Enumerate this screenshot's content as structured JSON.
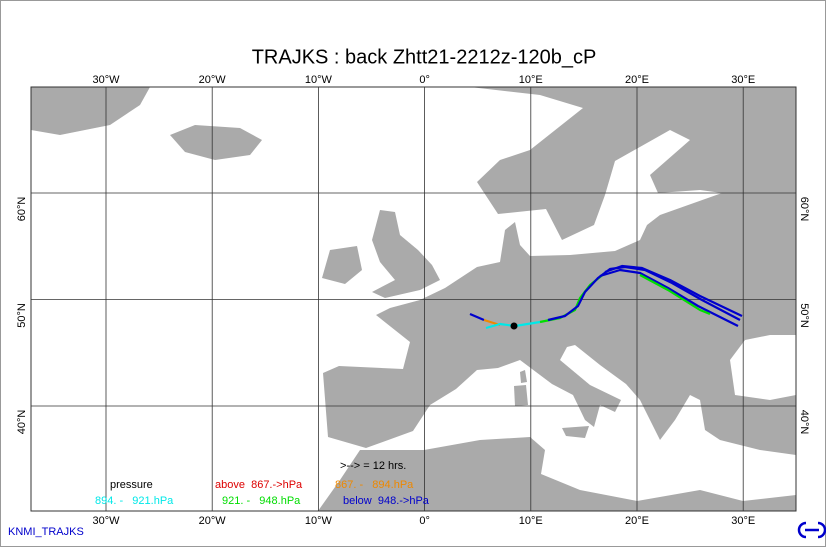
{
  "title": "TRAJKS : back Zhtt21-2212z-120b_cP",
  "lon_labels": [
    "30°W",
    "20°W",
    "10°W",
    "0°",
    "10°E",
    "20°E",
    "30°E"
  ],
  "lat_labels": [
    "60°N",
    "50°N",
    "40°N"
  ],
  "legend": {
    "heading": "pressure",
    "time_step": ">--> = 12 hrs.",
    "levels": [
      {
        "label": "above  867.->hPa",
        "color": "#dd0000"
      },
      {
        "label": "867. -   894.hPa",
        "color": "#ee8800"
      },
      {
        "label": "894. -   921.hPa",
        "color": "#00e8e8"
      },
      {
        "label": "921. -   948.hPa",
        "color": "#00dd00"
      },
      {
        "label": "below  948.->hPa",
        "color": "#0000cc"
      }
    ]
  },
  "footer": "KNMI_TRAJKS"
}
